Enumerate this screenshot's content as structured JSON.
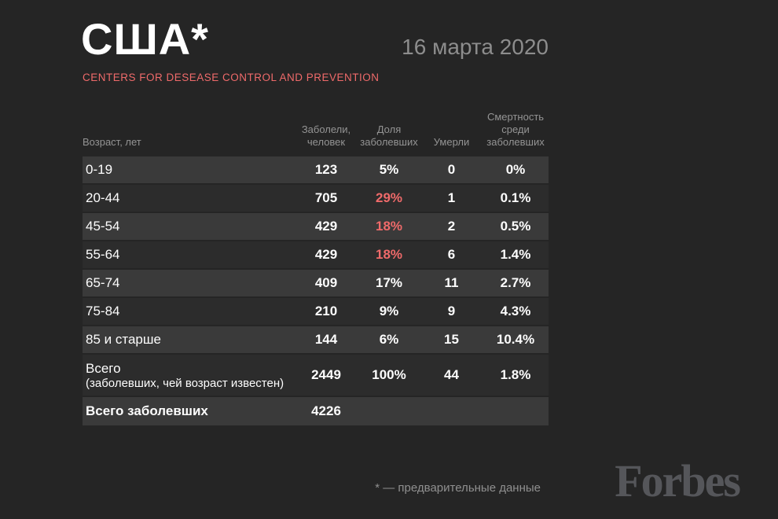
{
  "header": {
    "title": "США*",
    "date": "16 марта 2020",
    "subtitle": "CENTERS FOR DESEASE CONTROL AND PREVENTION"
  },
  "table": {
    "columns": [
      "Возраст, лет",
      "Заболели,\nчеловек",
      "Доля\nзаболевших",
      "Умерли",
      "Смертность\nсреди\nзаболевших"
    ],
    "rows": [
      {
        "age": "0-19",
        "cases": "123",
        "share": "5%",
        "deaths": "0",
        "mortality": "0%",
        "share_accent": false
      },
      {
        "age": "20-44",
        "cases": "705",
        "share": "29%",
        "deaths": "1",
        "mortality": "0.1%",
        "share_accent": true
      },
      {
        "age": "45-54",
        "cases": "429",
        "share": "18%",
        "deaths": "2",
        "mortality": "0.5%",
        "share_accent": true
      },
      {
        "age": "55-64",
        "cases": "429",
        "share": "18%",
        "deaths": "6",
        "mortality": "1.4%",
        "share_accent": true
      },
      {
        "age": "65-74",
        "cases": "409",
        "share": "17%",
        "deaths": "11",
        "mortality": "2.7%",
        "share_accent": false
      },
      {
        "age": "75-84",
        "cases": "210",
        "share": "9%",
        "deaths": "9",
        "mortality": "4.3%",
        "share_accent": false
      },
      {
        "age": "85 и старше",
        "cases": "144",
        "share": "6%",
        "deaths": "15",
        "mortality": "10.4%",
        "share_accent": false
      }
    ],
    "total_known": {
      "label_line1": "Всего",
      "label_line2": "(заболевших, чей возраст известен)",
      "cases": "2449",
      "share": "100%",
      "deaths": "44",
      "mortality": "1.8%"
    },
    "total_all": {
      "label": "Всего заболевших",
      "cases": "4226"
    }
  },
  "footer": {
    "note": "* — предварительные данные",
    "brand": "Forbes"
  },
  "colors": {
    "background": "#252525",
    "row_light": "#3a3a3a",
    "row_dark": "#2c2c2c",
    "accent_red": "#ef6a6a",
    "muted_text": "#949494",
    "brand_gray": "#55565a"
  },
  "chart_data": {
    "type": "table",
    "title": "США* — CENTERS FOR DESEASE CONTROL AND PREVENTION",
    "date": "16 марта 2020",
    "columns": [
      "Возраст, лет",
      "Заболели, человек",
      "Доля заболевших",
      "Умерли",
      "Смертность среди заболевших"
    ],
    "rows": [
      [
        "0-19",
        123,
        "5%",
        0,
        "0%"
      ],
      [
        "20-44",
        705,
        "29%",
        1,
        "0.1%"
      ],
      [
        "45-54",
        429,
        "18%",
        2,
        "0.5%"
      ],
      [
        "55-64",
        429,
        "18%",
        6,
        "1.4%"
      ],
      [
        "65-74",
        409,
        "17%",
        11,
        "2.7%"
      ],
      [
        "75-84",
        210,
        "9%",
        9,
        "4.3%"
      ],
      [
        "85 и старше",
        144,
        "6%",
        15,
        "10.4%"
      ],
      [
        "Всего (заболевших, чей возраст известен)",
        2449,
        "100%",
        44,
        "1.8%"
      ],
      [
        "Всего заболевших",
        4226,
        null,
        null,
        null
      ]
    ],
    "accent_cells": [
      [
        "20-44",
        "Доля заболевших"
      ],
      [
        "45-54",
        "Доля заболевших"
      ],
      [
        "55-64",
        "Доля заболевших"
      ]
    ]
  }
}
